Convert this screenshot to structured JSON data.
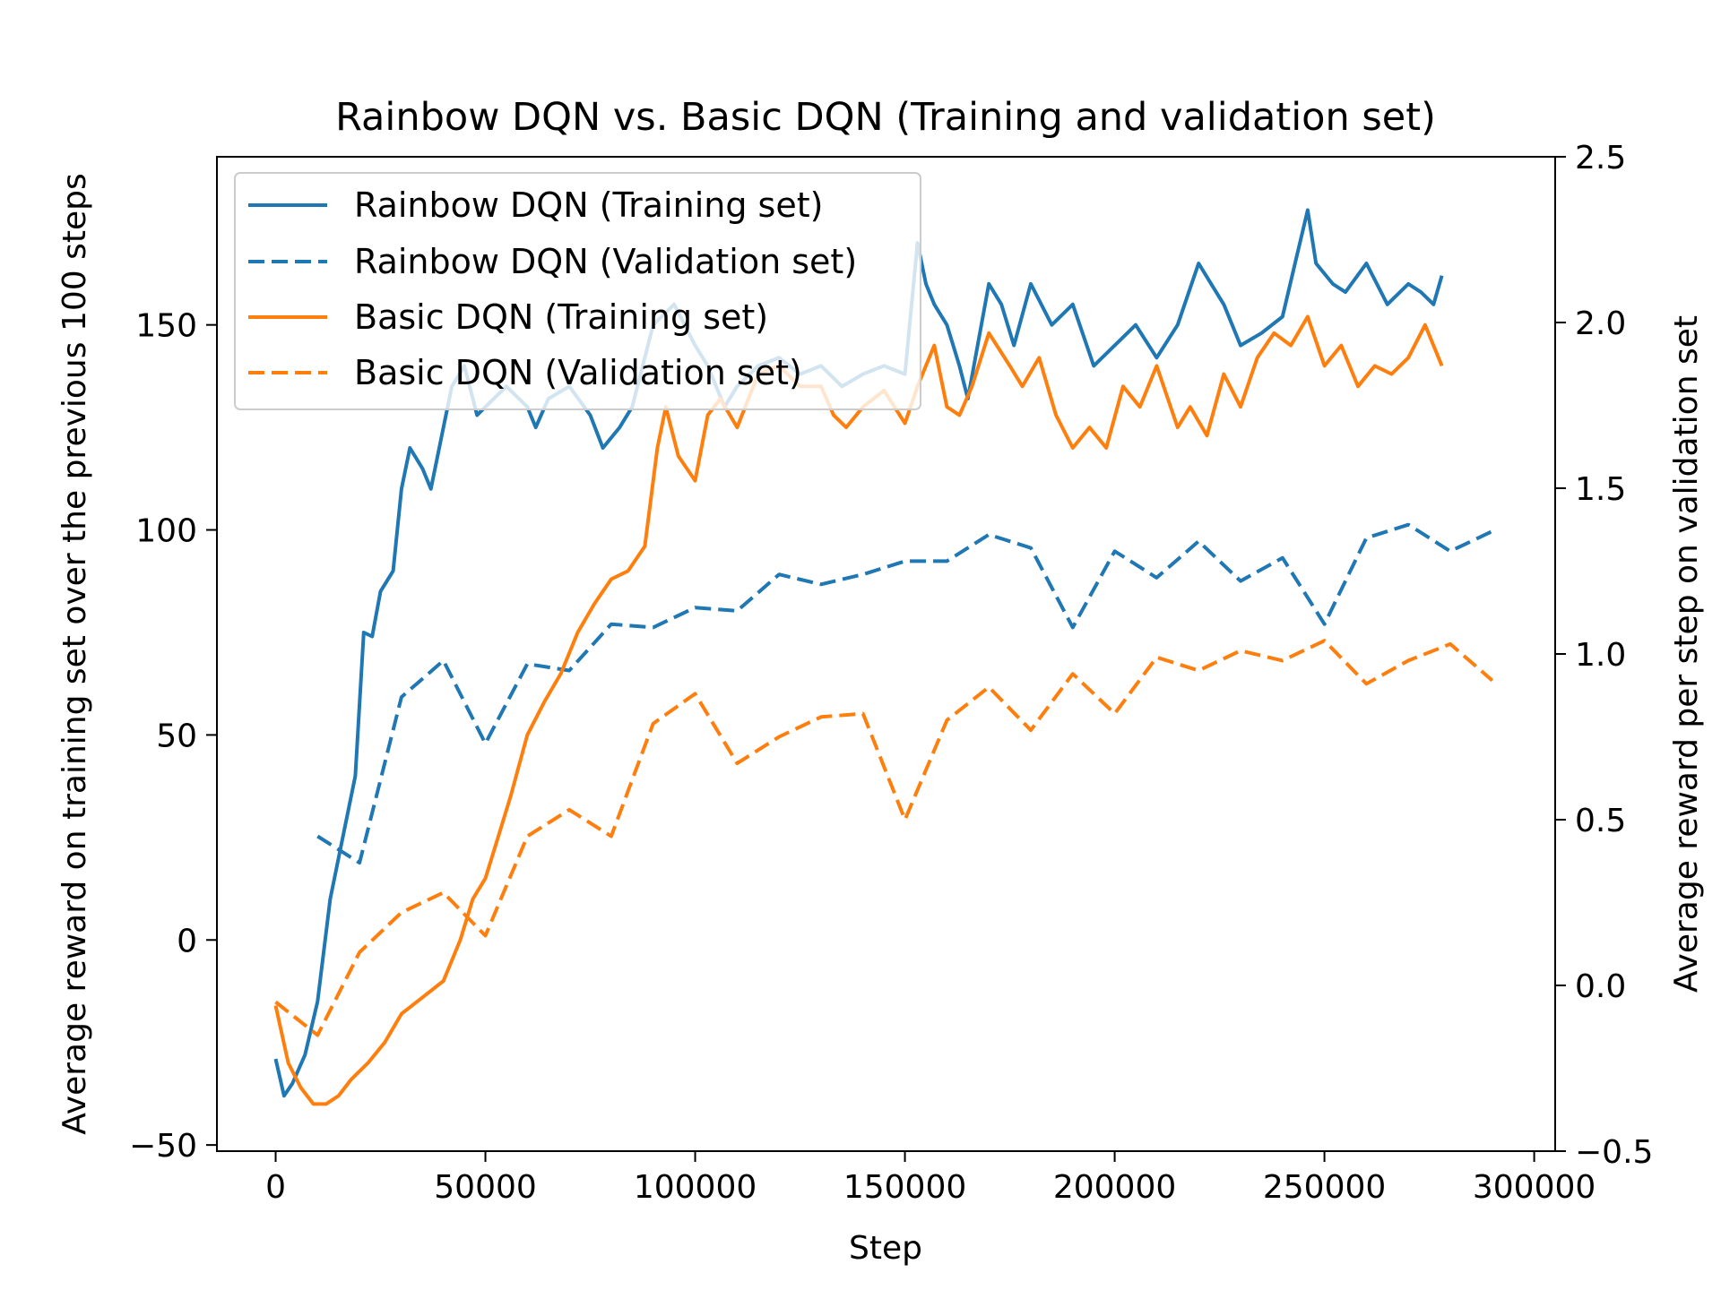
{
  "chart_data": {
    "type": "line",
    "title": "Rainbow DQN vs. Basic DQN (Training and validation set)",
    "xlabel": "Step",
    "ylabel_left": "Average reward on training set over the previous 100 steps",
    "ylabel_right": "Average reward per step on validation set",
    "xlim": [
      -14000,
      305000
    ],
    "ylim_left": [
      -51.5,
      191
    ],
    "ylim_right": [
      -0.5,
      2.5
    ],
    "x_ticks": [
      0,
      50000,
      100000,
      150000,
      200000,
      250000,
      300000
    ],
    "x_tick_labels": [
      "0",
      "50000",
      "100000",
      "150000",
      "200000",
      "250000",
      "300000"
    ],
    "y_left_ticks": [
      -50,
      0,
      50,
      100,
      150
    ],
    "y_left_tick_labels": [
      "−50",
      "0",
      "50",
      "100",
      "150"
    ],
    "y_right_ticks": [
      -0.5,
      0.0,
      0.5,
      1.0,
      1.5,
      2.0,
      2.5
    ],
    "y_right_tick_labels": [
      "−0.5",
      "0.0",
      "0.5",
      "1.0",
      "1.5",
      "2.0",
      "2.5"
    ],
    "legend_position": "upper-left",
    "series": [
      {
        "name": "Rainbow DQN (Training set)",
        "axis": "left",
        "style": "solid",
        "color": "#1f77b4",
        "x": [
          0,
          2000,
          4000,
          7000,
          10000,
          13000,
          16000,
          19000,
          21000,
          23000,
          25000,
          28000,
          30000,
          32000,
          35000,
          37000,
          40000,
          42000,
          45000,
          48000,
          50000,
          55000,
          60000,
          62000,
          65000,
          70000,
          75000,
          78000,
          82000,
          85000,
          90000,
          95000,
          100000,
          103000,
          107000,
          110000,
          115000,
          120000,
          125000,
          130000,
          135000,
          140000,
          145000,
          150000,
          153000,
          155000,
          157000,
          160000,
          163000,
          165000,
          170000,
          173000,
          176000,
          180000,
          185000,
          190000,
          195000,
          200000,
          205000,
          210000,
          215000,
          220000,
          223000,
          226000,
          230000,
          235000,
          240000,
          243000,
          246000,
          248000,
          252000,
          255000,
          260000,
          265000,
          270000,
          273000,
          276000,
          278000
        ],
        "values": [
          -29,
          -38,
          -35,
          -28,
          -15,
          10,
          25,
          40,
          75,
          74,
          85,
          90,
          110,
          120,
          115,
          110,
          125,
          135,
          140,
          128,
          130,
          135,
          130,
          125,
          132,
          135,
          128,
          120,
          125,
          130,
          150,
          155,
          145,
          140,
          130,
          135,
          140,
          142,
          138,
          140,
          135,
          138,
          140,
          138,
          170,
          160,
          155,
          150,
          140,
          132,
          160,
          155,
          145,
          160,
          150,
          155,
          140,
          145,
          150,
          142,
          150,
          165,
          160,
          155,
          145,
          148,
          152,
          165,
          178,
          165,
          160,
          158,
          165,
          155,
          160,
          158,
          155,
          162
        ]
      },
      {
        "name": "Rainbow DQN (Validation set)",
        "axis": "right",
        "style": "dashed",
        "color": "#1f77b4",
        "x": [
          10000,
          20000,
          30000,
          40000,
          50000,
          60000,
          70000,
          80000,
          90000,
          100000,
          110000,
          120000,
          130000,
          140000,
          150000,
          160000,
          170000,
          180000,
          190000,
          200000,
          210000,
          220000,
          230000,
          240000,
          250000,
          260000,
          270000,
          280000,
          290000
        ],
        "values": [
          0.45,
          0.37,
          0.87,
          0.98,
          0.73,
          0.97,
          0.95,
          1.09,
          1.08,
          1.14,
          1.13,
          1.24,
          1.21,
          1.24,
          1.28,
          1.28,
          1.36,
          1.32,
          1.08,
          1.31,
          1.23,
          1.34,
          1.22,
          1.29,
          1.09,
          1.35,
          1.39,
          1.31,
          1.37
        ]
      },
      {
        "name": "Basic DQN (Training set)",
        "axis": "left",
        "style": "solid",
        "color": "#ff7f0e",
        "x": [
          0,
          3000,
          6000,
          9000,
          12000,
          15000,
          18000,
          22000,
          26000,
          30000,
          35000,
          40000,
          44000,
          47000,
          50000,
          53000,
          56000,
          60000,
          64000,
          68000,
          72000,
          76000,
          80000,
          84000,
          88000,
          91000,
          93000,
          96000,
          100000,
          103000,
          106000,
          110000,
          115000,
          120000,
          125000,
          130000,
          133000,
          136000,
          140000,
          145000,
          150000,
          153000,
          157000,
          160000,
          163000,
          166000,
          170000,
          175000,
          178000,
          182000,
          186000,
          190000,
          194000,
          198000,
          202000,
          206000,
          210000,
          215000,
          218000,
          222000,
          226000,
          230000,
          234000,
          238000,
          242000,
          246000,
          250000,
          254000,
          258000,
          262000,
          266000,
          270000,
          274000,
          278000
        ],
        "values": [
          -16,
          -30,
          -36,
          -40,
          -40,
          -38,
          -34,
          -30,
          -25,
          -18,
          -14,
          -10,
          0,
          10,
          15,
          25,
          35,
          50,
          58,
          65,
          75,
          82,
          88,
          90,
          96,
          120,
          130,
          118,
          112,
          128,
          132,
          125,
          138,
          140,
          135,
          135,
          128,
          125,
          130,
          134,
          126,
          135,
          145,
          130,
          128,
          135,
          148,
          140,
          135,
          142,
          128,
          120,
          125,
          120,
          135,
          130,
          140,
          125,
          130,
          123,
          138,
          130,
          142,
          148,
          145,
          152,
          140,
          145,
          135,
          140,
          138,
          142,
          150,
          140
        ]
      },
      {
        "name": "Basic DQN (Validation set)",
        "axis": "right",
        "style": "dashed",
        "color": "#ff7f0e",
        "x": [
          0,
          10000,
          20000,
          30000,
          40000,
          50000,
          60000,
          70000,
          80000,
          90000,
          100000,
          110000,
          120000,
          130000,
          140000,
          150000,
          160000,
          170000,
          180000,
          190000,
          200000,
          210000,
          220000,
          230000,
          240000,
          250000,
          260000,
          270000,
          280000,
          290000
        ],
        "values": [
          -0.05,
          -0.15,
          0.1,
          0.22,
          0.28,
          0.15,
          0.45,
          0.53,
          0.45,
          0.79,
          0.88,
          0.67,
          0.75,
          0.81,
          0.82,
          0.5,
          0.8,
          0.9,
          0.77,
          0.94,
          0.82,
          0.99,
          0.95,
          1.01,
          0.98,
          1.04,
          0.91,
          0.98,
          1.03,
          0.92
        ]
      }
    ]
  }
}
